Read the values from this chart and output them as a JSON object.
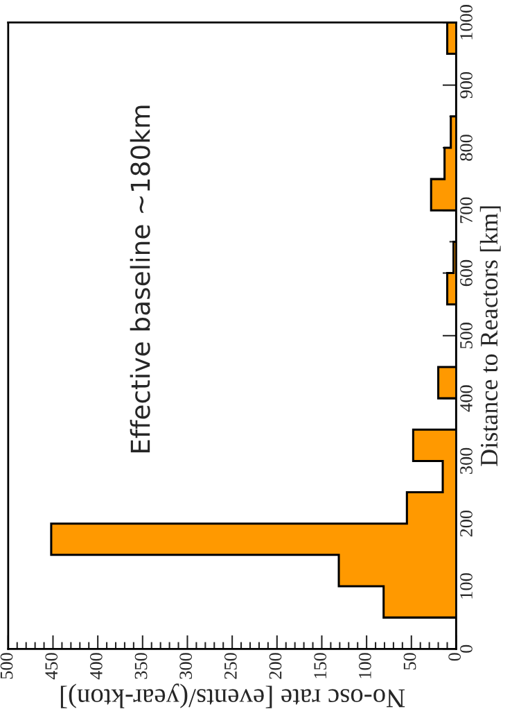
{
  "chart_data": {
    "type": "histogram",
    "orientation": "horizontal",
    "color": "#ff9900",
    "bins": [
      0,
      50,
      100,
      150,
      200,
      250,
      300,
      350,
      400,
      450,
      500,
      550,
      600,
      650,
      700,
      750,
      800,
      850,
      900,
      950,
      1000
    ],
    "values": [
      0,
      81,
      131,
      452,
      55,
      15,
      48,
      0,
      20,
      0,
      0,
      10,
      3,
      0,
      28,
      13,
      6,
      0,
      0,
      10
    ],
    "xlabel": "No-osc rate [events/(year-kton)]",
    "ylabel": "Distance to Reactors [km]",
    "xlim": [
      500,
      0
    ],
    "xticks": [
      0,
      50,
      100,
      150,
      200,
      250,
      300,
      350,
      400,
      450,
      500
    ],
    "ylim": [
      0,
      1000
    ],
    "yticks": [
      0,
      100,
      200,
      300,
      400,
      500,
      600,
      700,
      800,
      900,
      1000
    ],
    "annotations": [
      "Effective baseline ~180km"
    ],
    "grid": false,
    "legend": false
  }
}
